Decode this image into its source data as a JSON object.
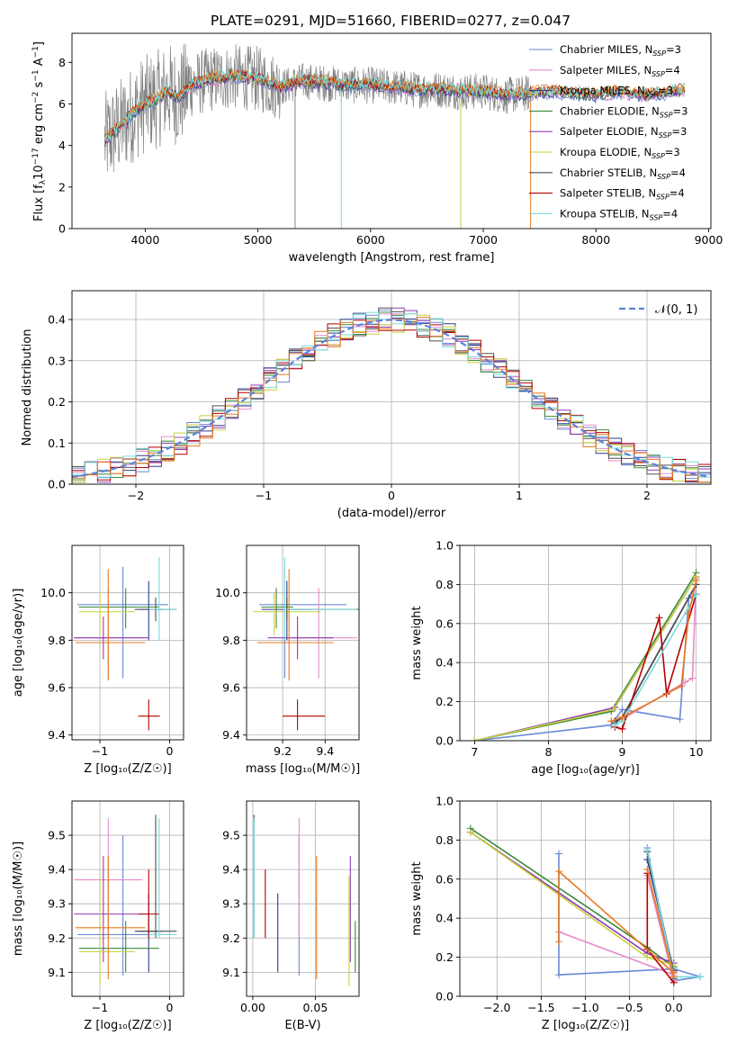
{
  "figure": {
    "title": "PLATE=0291, MJD=51660, FIBERID=0277, z=0.047"
  },
  "model_colors": {
    "Chabrier MILES": "#6a8ad6",
    "Salpeter MILES": "#e88ccb",
    "Kroupa MILES": "#2c3e8c",
    "Chabrier ELODIE": "#3c8a3c",
    "Salpeter ELODIE": "#8c3cb4",
    "Kroupa ELODIE": "#c8d23c",
    "Chabrier STELIB": "#505050",
    "Salpeter STELIB": "#b40000",
    "Kroupa STELIB": "#78dcdc",
    "orange_extra": "#e8781e",
    "data": "#808080"
  },
  "chart_data": [
    {
      "type": "line",
      "name": "spectrum",
      "xlabel": "wavelength [Angstrom, rest frame]",
      "ylabel": "Flux [f$_\\lambda$10$^{-17}$ erg cm$^{-2}$ s$^{-1}$ A$^{-1}$]",
      "ylabel_parts": [
        "Flux [f",
        "λ",
        "10",
        "−17",
        " erg cm",
        "−2",
        " s",
        "−1",
        " A",
        "−1",
        "]"
      ],
      "xlim": [
        3350,
        9020
      ],
      "ylim": [
        0,
        9.4
      ],
      "xticks": [
        4000,
        5000,
        6000,
        7000,
        8000,
        9000
      ],
      "yticks": [
        0,
        2,
        4,
        6,
        8
      ],
      "legend_position": "right",
      "legend": [
        {
          "label": "Chabrier MILES, N",
          "sub": "SSP",
          "eq": "=3",
          "color_key": "Chabrier MILES"
        },
        {
          "label": "Salpeter MILES, N",
          "sub": "SSP",
          "eq": "=4",
          "color_key": "Salpeter MILES"
        },
        {
          "label": "Kroupa MILES, N",
          "sub": "SSP",
          "eq": "=3",
          "color_key": "Kroupa MILES"
        },
        {
          "label": "Chabrier ELODIE, N",
          "sub": "SSP",
          "eq": "=3",
          "color_key": "Chabrier ELODIE"
        },
        {
          "label": "Salpeter ELODIE, N",
          "sub": "SSP",
          "eq": "=3",
          "color_key": "Salpeter ELODIE"
        },
        {
          "label": "Kroupa ELODIE, N",
          "sub": "SSP",
          "eq": "=3",
          "color_key": "Kroupa ELODIE"
        },
        {
          "label": "Chabrier STELIB, N",
          "sub": "SSP",
          "eq": "=4",
          "color_key": "Chabrier STELIB"
        },
        {
          "label": "Salpeter STELIB, N",
          "sub": "SSP",
          "eq": "=4",
          "color_key": "Salpeter STELIB"
        },
        {
          "label": "Kroupa STELIB, N",
          "sub": "SSP",
          "eq": "=4",
          "color_key": "Kroupa STELIB"
        }
      ],
      "continuum": [
        [
          3640,
          4.2
        ],
        [
          3700,
          4.5
        ],
        [
          3800,
          5.0
        ],
        [
          3900,
          5.6
        ],
        [
          4000,
          6.0
        ],
        [
          4100,
          6.2
        ],
        [
          4200,
          6.6
        ],
        [
          4300,
          6.3
        ],
        [
          4400,
          6.9
        ],
        [
          4600,
          7.2
        ],
        [
          4800,
          7.3
        ],
        [
          5000,
          7.2
        ],
        [
          5200,
          6.8
        ],
        [
          5400,
          7.1
        ],
        [
          5600,
          7.0
        ],
        [
          5800,
          6.9
        ],
        [
          6000,
          6.9
        ],
        [
          6200,
          6.8
        ],
        [
          6400,
          6.7
        ],
        [
          6600,
          6.7
        ],
        [
          6800,
          6.6
        ],
        [
          7000,
          6.6
        ],
        [
          7200,
          6.4
        ],
        [
          7400,
          6.5
        ],
        [
          7600,
          6.6
        ],
        [
          7800,
          6.5
        ],
        [
          8000,
          6.4
        ],
        [
          8200,
          6.6
        ],
        [
          8400,
          6.4
        ],
        [
          8600,
          6.5
        ],
        [
          8800,
          6.7
        ]
      ],
      "model_range": [
        3640,
        8790
      ],
      "data_range": [
        3640,
        7420
      ]
    },
    {
      "type": "line",
      "name": "residuals",
      "xlabel": "(data-model)/error",
      "ylabel": "Normed distribution",
      "xlim": [
        -2.5,
        2.5
      ],
      "ylim": [
        0,
        0.47
      ],
      "xticks": [
        -2,
        -1,
        0,
        1,
        2
      ],
      "yticks": [
        0.0,
        0.1,
        0.2,
        0.3,
        0.4
      ],
      "grid": true,
      "legend_position": "top-right",
      "gaussian_label": "𝒩(0, 1)",
      "gaussian_color": "#5a82dc",
      "bin_width": 0.1
    },
    {
      "type": "scatter",
      "name": "age-vs-Z",
      "xlabel": "Z [log$_{10}$(Z/Z$_\\odot$)]",
      "xlabel_text": "Z [log₁₀(Z/Z☉)]",
      "ylabel_text": "age  [log₁₀(age/yr)]",
      "xlim": [
        -1.4,
        0.2
      ],
      "ylim": [
        9.38,
        10.2
      ],
      "xticks": [
        -1,
        0
      ],
      "yticks": [
        9.4,
        9.6,
        9.8,
        10.0
      ],
      "grid": true
    },
    {
      "type": "scatter",
      "name": "age-vs-mass",
      "xlabel_text": "mass [log₁₀(M/M☉)]",
      "xlim": [
        9.03,
        9.56
      ],
      "ylim": [
        9.38,
        10.2
      ],
      "xticks": [
        9.2,
        9.4
      ],
      "yticks": [
        9.4,
        9.6,
        9.8,
        10.0
      ],
      "grid": true
    },
    {
      "type": "line",
      "name": "massweight-vs-age",
      "xlabel_text": "age  [log₁₀(age/yr)]",
      "ylabel": "mass weight",
      "xlim": [
        6.8,
        10.2
      ],
      "ylim": [
        0,
        1.0
      ],
      "xticks": [
        7,
        8,
        9,
        10
      ],
      "yticks": [
        0.0,
        0.2,
        0.4,
        0.6,
        0.8,
        1.0
      ],
      "grid": true
    },
    {
      "type": "scatter",
      "name": "mass-vs-Z",
      "xlabel_text": "Z [log₁₀(Z/Z☉)]",
      "ylabel_text": "mass [log₁₀(M/M☉)]",
      "xlim": [
        -1.4,
        0.2
      ],
      "ylim": [
        9.03,
        9.6
      ],
      "xticks": [
        -1,
        0
      ],
      "yticks": [
        9.1,
        9.2,
        9.3,
        9.4,
        9.5
      ],
      "grid": true
    },
    {
      "type": "scatter",
      "name": "mass-vs-EBV",
      "xlabel": "E(B-V)",
      "xlim": [
        -0.005,
        0.085
      ],
      "ylim": [
        9.03,
        9.6
      ],
      "xticks": [
        0.0,
        0.05
      ],
      "yticks": [
        9.1,
        9.2,
        9.3,
        9.4,
        9.5
      ],
      "grid": true
    },
    {
      "type": "line",
      "name": "massweight-vs-Z",
      "xlabel_text": "Z [log₁₀(Z/Z☉)]",
      "ylabel": "mass weight",
      "xlim": [
        -2.42,
        0.42
      ],
      "ylim": [
        0,
        1.0
      ],
      "xticks": [
        -2.0,
        -1.5,
        -1.0,
        -0.5,
        0.0
      ],
      "yticks": [
        0.0,
        0.2,
        0.4,
        0.6,
        0.8,
        1.0
      ],
      "grid": true
    }
  ],
  "models": [
    {
      "key": "Chabrier MILES",
      "age": 9.95,
      "age_err": [
        9.64,
        10.11
      ],
      "Z": -0.67,
      "Z_err": [
        -1.32,
        -0.02
      ],
      "mass": 9.21,
      "mass_err": [
        9.09,
        9.5
      ],
      "ebv": 0.037,
      "mw_age": [
        [
          7.0,
          0.0
        ],
        [
          8.85,
          0.08
        ],
        [
          9.0,
          0.16
        ],
        [
          9.78,
          0.11
        ],
        [
          9.9,
          0.73
        ],
        [
          10.0,
          0.75
        ]
      ],
      "mw_Z": [
        [
          -1.3,
          0.73
        ],
        [
          -1.3,
          0.11
        ],
        [
          0.0,
          0.14
        ],
        [
          0.3,
          0.1
        ],
        [
          0.0,
          0.08
        ],
        [
          -0.3,
          0.76
        ]
      ]
    },
    {
      "key": "Salpeter MILES",
      "age": 9.81,
      "age_err": [
        9.64,
        10.02
      ],
      "Z": -0.88,
      "Z_err": [
        -1.37,
        -0.39
      ],
      "mass": 9.37,
      "mass_err": [
        9.2,
        9.55
      ],
      "ebv": 0.037,
      "mw_age": [
        [
          8.85,
          0.1
        ],
        [
          9.0,
          0.11
        ],
        [
          9.85,
          0.3
        ],
        [
          9.95,
          0.32
        ],
        [
          10.0,
          0.83
        ]
      ],
      "mw_Z": [
        [
          -1.3,
          0.33
        ],
        [
          0.0,
          0.11
        ],
        [
          0.0,
          0.08
        ],
        [
          -0.3,
          0.62
        ]
      ]
    },
    {
      "key": "Kroupa MILES",
      "age": 9.93,
      "age_err": [
        9.8,
        10.05
      ],
      "Z": -0.3,
      "Z_err": [
        -0.5,
        -0.1
      ],
      "mass": 9.22,
      "mass_err": [
        9.1,
        9.33
      ],
      "ebv": 0.02,
      "mw_age": [
        [
          8.9,
          0.1
        ],
        [
          9.0,
          0.12
        ],
        [
          10.0,
          0.8
        ]
      ],
      "mw_Z": [
        [
          -0.3,
          0.7
        ],
        [
          0.0,
          0.13
        ]
      ]
    },
    {
      "key": "Chabrier ELODIE",
      "age": 9.94,
      "age_err": [
        9.85,
        10.02
      ],
      "Z": -0.63,
      "Z_err": [
        -1.3,
        -0.15
      ],
      "mass": 9.17,
      "mass_err": [
        9.1,
        9.25
      ],
      "ebv": 0.082,
      "mw_age": [
        [
          7.0,
          0.0
        ],
        [
          8.85,
          0.15
        ],
        [
          10.0,
          0.86
        ]
      ],
      "mw_Z": [
        [
          -2.3,
          0.86
        ],
        [
          -0.3,
          0.25
        ],
        [
          0.0,
          0.15
        ]
      ]
    },
    {
      "key": "Salpeter ELODIE",
      "age": 9.81,
      "age_err": [
        9.72,
        9.9
      ],
      "Z": -0.95,
      "Z_err": [
        -1.37,
        -0.3
      ],
      "mass": 9.27,
      "mass_err": [
        9.13,
        9.44
      ],
      "ebv": 0.078,
      "mw_age": [
        [
          7.0,
          0.0
        ],
        [
          8.9,
          0.17
        ],
        [
          10.0,
          0.84
        ]
      ],
      "mw_Z": [
        [
          -2.3,
          0.84
        ],
        [
          -0.3,
          0.22
        ],
        [
          0.0,
          0.17
        ]
      ]
    },
    {
      "key": "Kroupa ELODIE",
      "age": 9.92,
      "age_err": [
        9.82,
        10.0
      ],
      "Z": -1.0,
      "Z_err": [
        -1.3,
        -0.5
      ],
      "mass": 9.16,
      "mass_err": [
        9.06,
        9.38
      ],
      "ebv": 0.077,
      "mw_age": [
        [
          7.0,
          0.0
        ],
        [
          8.88,
          0.16
        ],
        [
          10.0,
          0.84
        ]
      ],
      "mw_Z": [
        [
          -2.3,
          0.84
        ],
        [
          -0.3,
          0.2
        ],
        [
          0.0,
          0.16
        ]
      ]
    },
    {
      "key": "Chabrier STELIB",
      "age": 9.93,
      "age_err": [
        9.88,
        9.98
      ],
      "Z": -0.2,
      "Z_err": [
        -0.45,
        0.1
      ],
      "mass": 9.22,
      "mass_err": [
        9.2,
        9.56
      ],
      "ebv": 0.001,
      "mw_age": [
        [
          8.9,
          0.09
        ],
        [
          9.0,
          0.12
        ],
        [
          10.0,
          0.8
        ]
      ],
      "mw_Z": [
        [
          -0.3,
          0.74
        ],
        [
          0.0,
          0.12
        ],
        [
          0.0,
          0.09
        ]
      ]
    },
    {
      "key": "Salpeter STELIB",
      "age": 9.48,
      "age_err": [
        9.42,
        9.55
      ],
      "Z": -0.3,
      "Z_err": [
        -0.45,
        -0.14
      ],
      "mass": 9.27,
      "mass_err": [
        9.2,
        9.4
      ],
      "ebv": 0.01,
      "mw_age": [
        [
          8.9,
          0.07
        ],
        [
          9.0,
          0.06
        ],
        [
          9.5,
          0.63
        ],
        [
          9.6,
          0.24
        ],
        [
          10.0,
          0.75
        ]
      ],
      "mw_Z": [
        [
          -0.3,
          0.63
        ],
        [
          -0.3,
          0.24
        ],
        [
          0.0,
          0.07
        ]
      ]
    },
    {
      "key": "Kroupa STELIB",
      "age": 9.93,
      "age_err": [
        9.8,
        10.15
      ],
      "Z": -0.15,
      "Z_err": [
        -0.3,
        0.1
      ],
      "mass": 9.21,
      "mass_err": [
        9.2,
        9.55
      ],
      "ebv": 0.001,
      "mw_age": [
        [
          8.9,
          0.08
        ],
        [
          9.0,
          0.1
        ],
        [
          10.0,
          0.75
        ]
      ],
      "mw_Z": [
        [
          -0.3,
          0.75
        ],
        [
          0.0,
          0.1
        ],
        [
          0.3,
          0.1
        ]
      ]
    },
    {
      "key": "orange_extra",
      "age": 9.79,
      "age_err": [
        9.63,
        10.1
      ],
      "Z": -0.88,
      "Z_err": [
        -1.35,
        -0.35
      ],
      "mass": 9.23,
      "mass_err": [
        9.08,
        9.44
      ],
      "ebv": 0.051,
      "mw_age": [
        [
          8.85,
          0.1
        ],
        [
          9.0,
          0.12
        ],
        [
          9.8,
          0.28
        ],
        [
          9.9,
          0.65
        ],
        [
          10.0,
          0.82
        ]
      ],
      "mw_Z": [
        [
          -1.3,
          0.28
        ],
        [
          -1.3,
          0.64
        ],
        [
          0.0,
          0.12
        ],
        [
          0.0,
          0.1
        ],
        [
          -0.3,
          0.65
        ]
      ]
    }
  ]
}
